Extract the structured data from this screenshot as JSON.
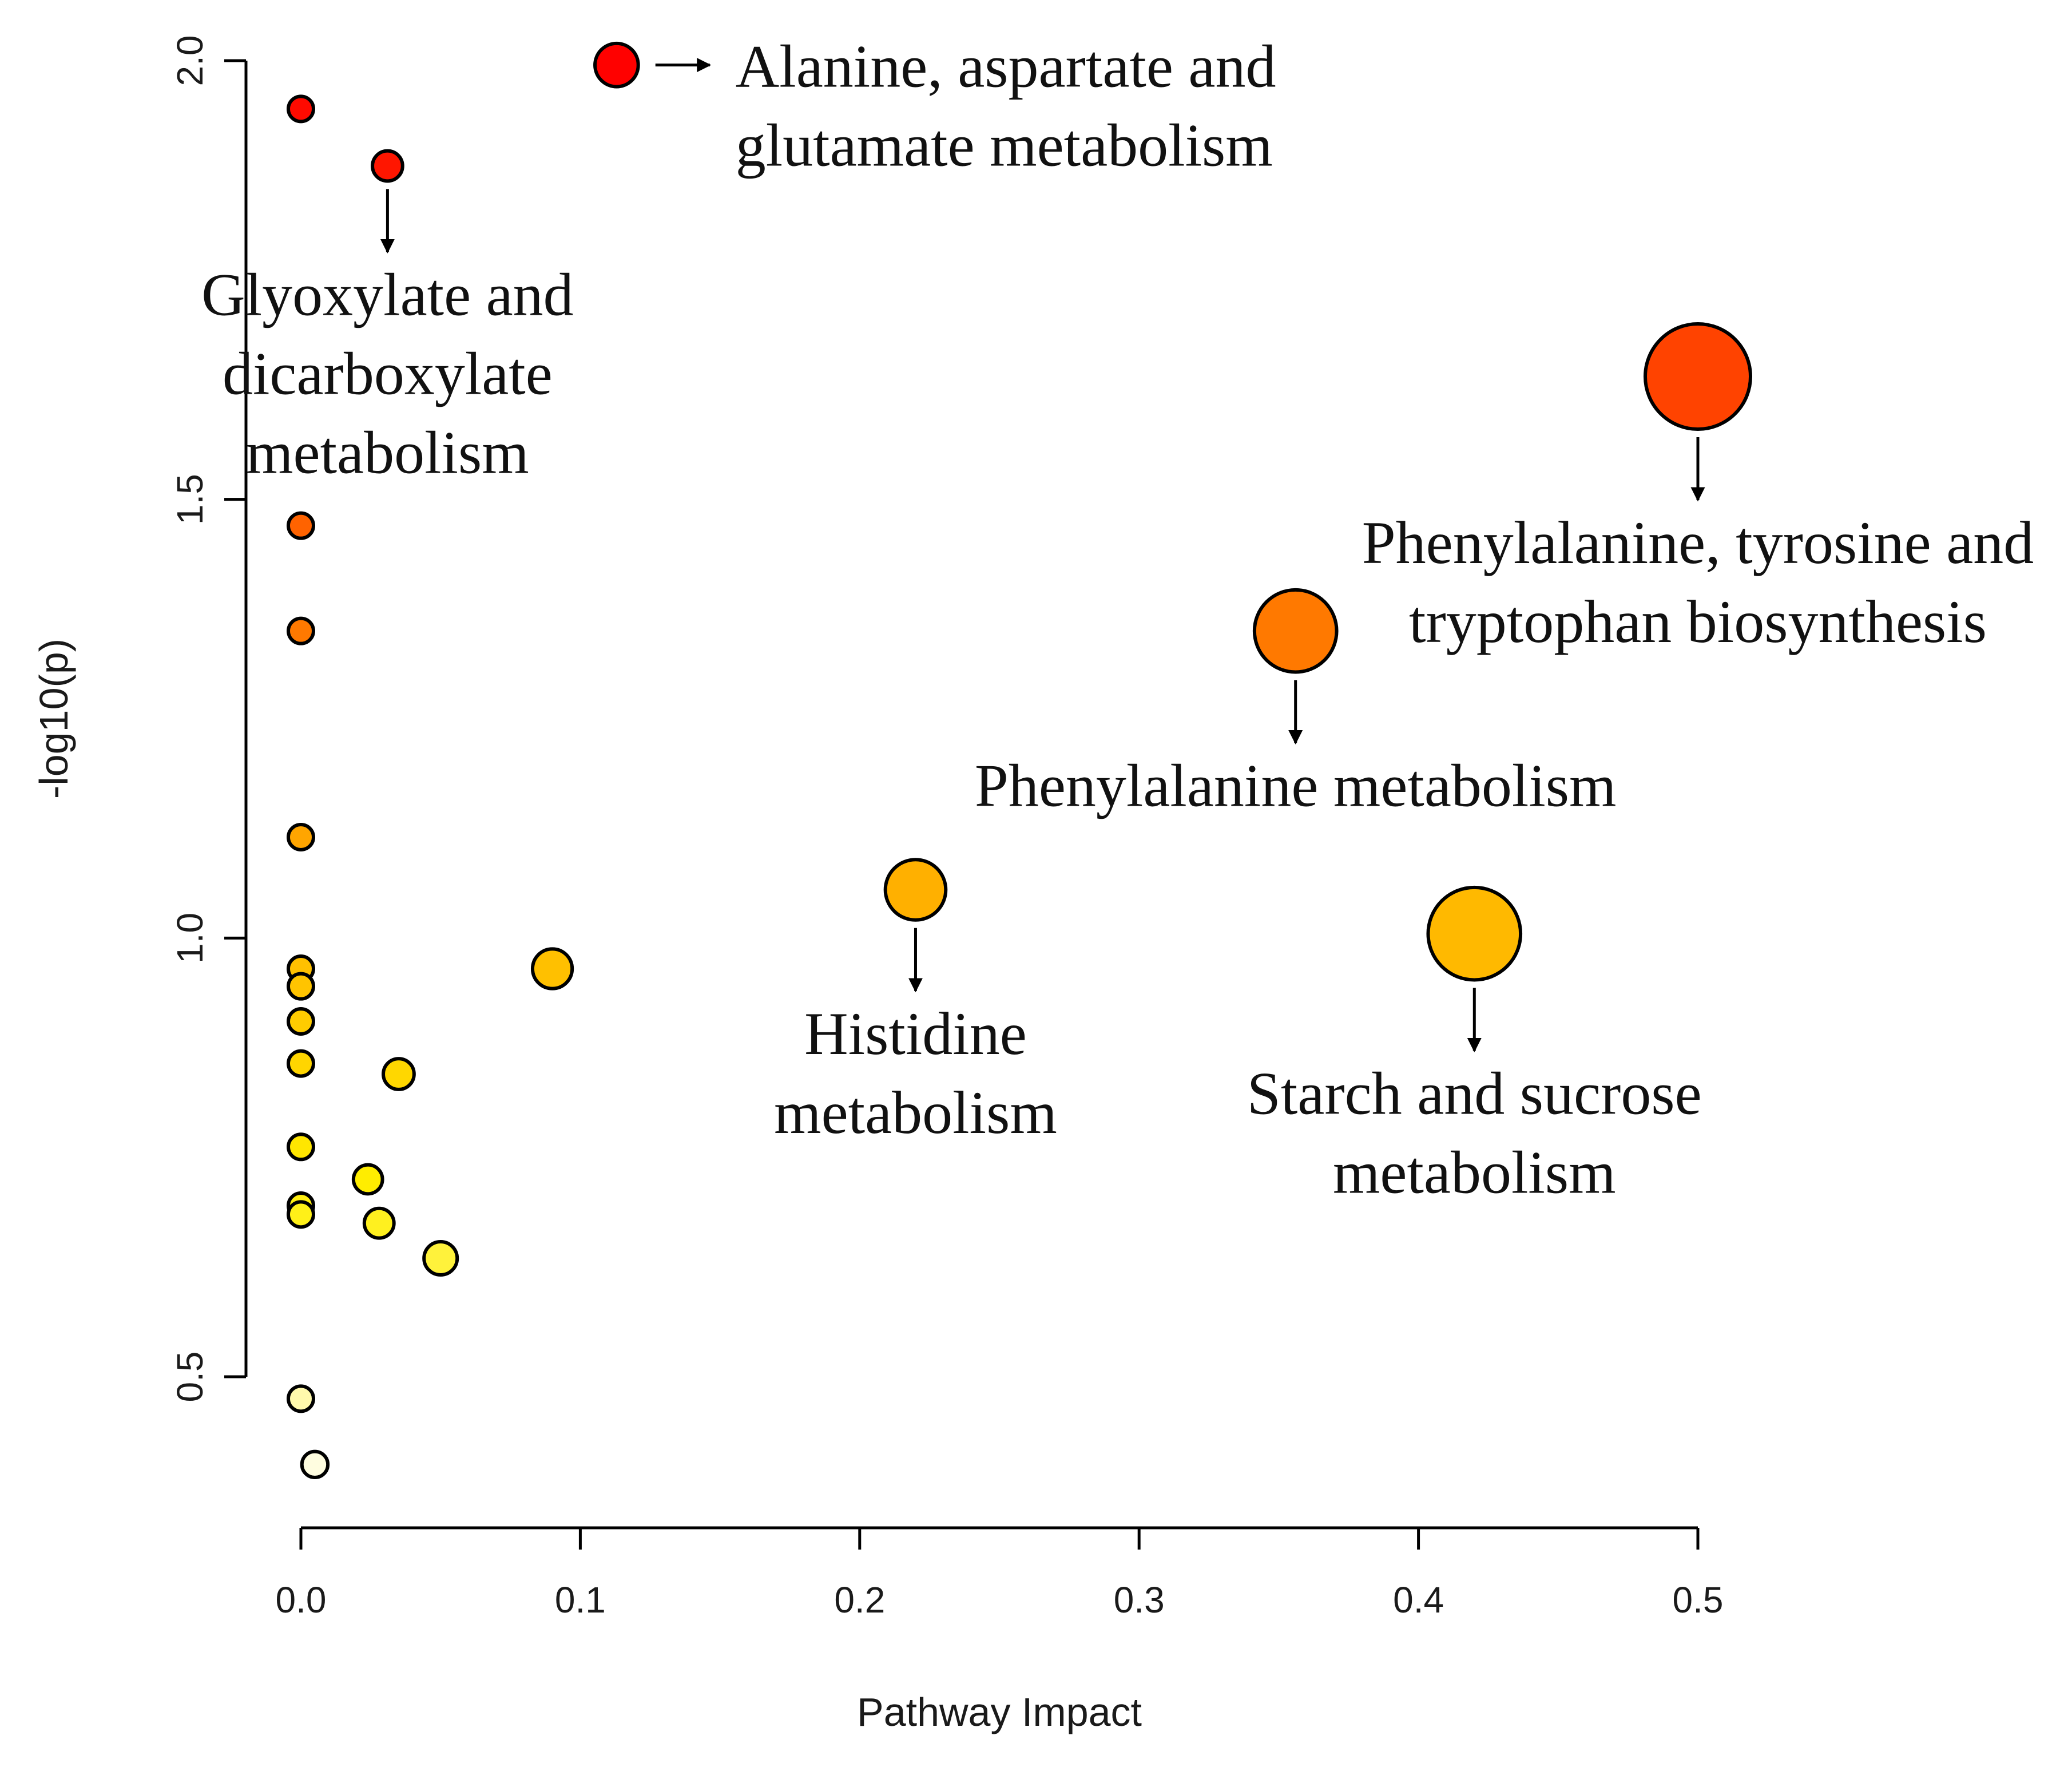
{
  "chart_data": {
    "type": "scatter",
    "title": "",
    "xlabel": "Pathway Impact",
    "ylabel": "-log10(p)",
    "xlim": [
      0,
      0.5
    ],
    "ylim": [
      0.5,
      2.0
    ],
    "x_ticks": [
      "0.0",
      "0.1",
      "0.2",
      "0.3",
      "0.4",
      "0.5"
    ],
    "y_ticks": [
      "0.5",
      "1.0",
      "1.5",
      "2.0"
    ],
    "color_scale": {
      "low": "#fffde0",
      "mid": "#ffee00",
      "high": "#ff0000",
      "metric": "-log10(p)"
    },
    "points": [
      {
        "x": 0.0,
        "y": 1.945,
        "size": 0.0
      },
      {
        "x": 0.031,
        "y": 1.88,
        "size": 0.031
      },
      {
        "x": 0.113,
        "y": 1.995,
        "size": 0.113
      },
      {
        "x": 0.0,
        "y": 1.47,
        "size": 0.0
      },
      {
        "x": 0.0,
        "y": 1.35,
        "size": 0.0
      },
      {
        "x": 0.0,
        "y": 1.115,
        "size": 0.0
      },
      {
        "x": 0.0,
        "y": 0.965,
        "size": 0.0
      },
      {
        "x": 0.0,
        "y": 0.945,
        "size": 0.0
      },
      {
        "x": 0.0,
        "y": 0.905,
        "size": 0.0
      },
      {
        "x": 0.0,
        "y": 0.857,
        "size": 0.0
      },
      {
        "x": 0.0,
        "y": 0.762,
        "size": 0.0
      },
      {
        "x": 0.0,
        "y": 0.695,
        "size": 0.0
      },
      {
        "x": 0.0,
        "y": 0.685,
        "size": 0.0
      },
      {
        "x": 0.0,
        "y": 0.475,
        "size": 0.0
      },
      {
        "x": 0.005,
        "y": 0.4,
        "size": 0.005
      },
      {
        "x": 0.024,
        "y": 0.725,
        "size": 0.024
      },
      {
        "x": 0.028,
        "y": 0.675,
        "size": 0.028
      },
      {
        "x": 0.035,
        "y": 0.845,
        "size": 0.035
      },
      {
        "x": 0.05,
        "y": 0.635,
        "size": 0.05
      },
      {
        "x": 0.09,
        "y": 0.965,
        "size": 0.09
      },
      {
        "x": 0.22,
        "y": 1.055,
        "size": 0.22
      },
      {
        "x": 0.356,
        "y": 1.35,
        "size": 0.356
      },
      {
        "x": 0.42,
        "y": 1.005,
        "size": 0.42
      },
      {
        "x": 0.5,
        "y": 1.64,
        "size": 0.5
      }
    ],
    "annotations": [
      {
        "point_index": 2,
        "lines": [
          "Alanine, aspartate and",
          "glutamate metabolism"
        ],
        "arrow": "right"
      },
      {
        "point_index": 1,
        "lines": [
          "Glyoxylate and",
          "dicarboxylate",
          "metabolism"
        ],
        "arrow": "down"
      },
      {
        "point_index": 23,
        "lines": [
          "Phenylalanine, tyrosine and",
          "tryptophan biosynthesis"
        ],
        "arrow": "down"
      },
      {
        "point_index": 21,
        "lines": [
          "Phenylalanine metabolism"
        ],
        "arrow": "down"
      },
      {
        "point_index": 20,
        "lines": [
          "Histidine",
          "metabolism"
        ],
        "arrow": "down"
      },
      {
        "point_index": 22,
        "lines": [
          "Starch and sucrose",
          "metabolism"
        ],
        "arrow": "down"
      }
    ]
  }
}
